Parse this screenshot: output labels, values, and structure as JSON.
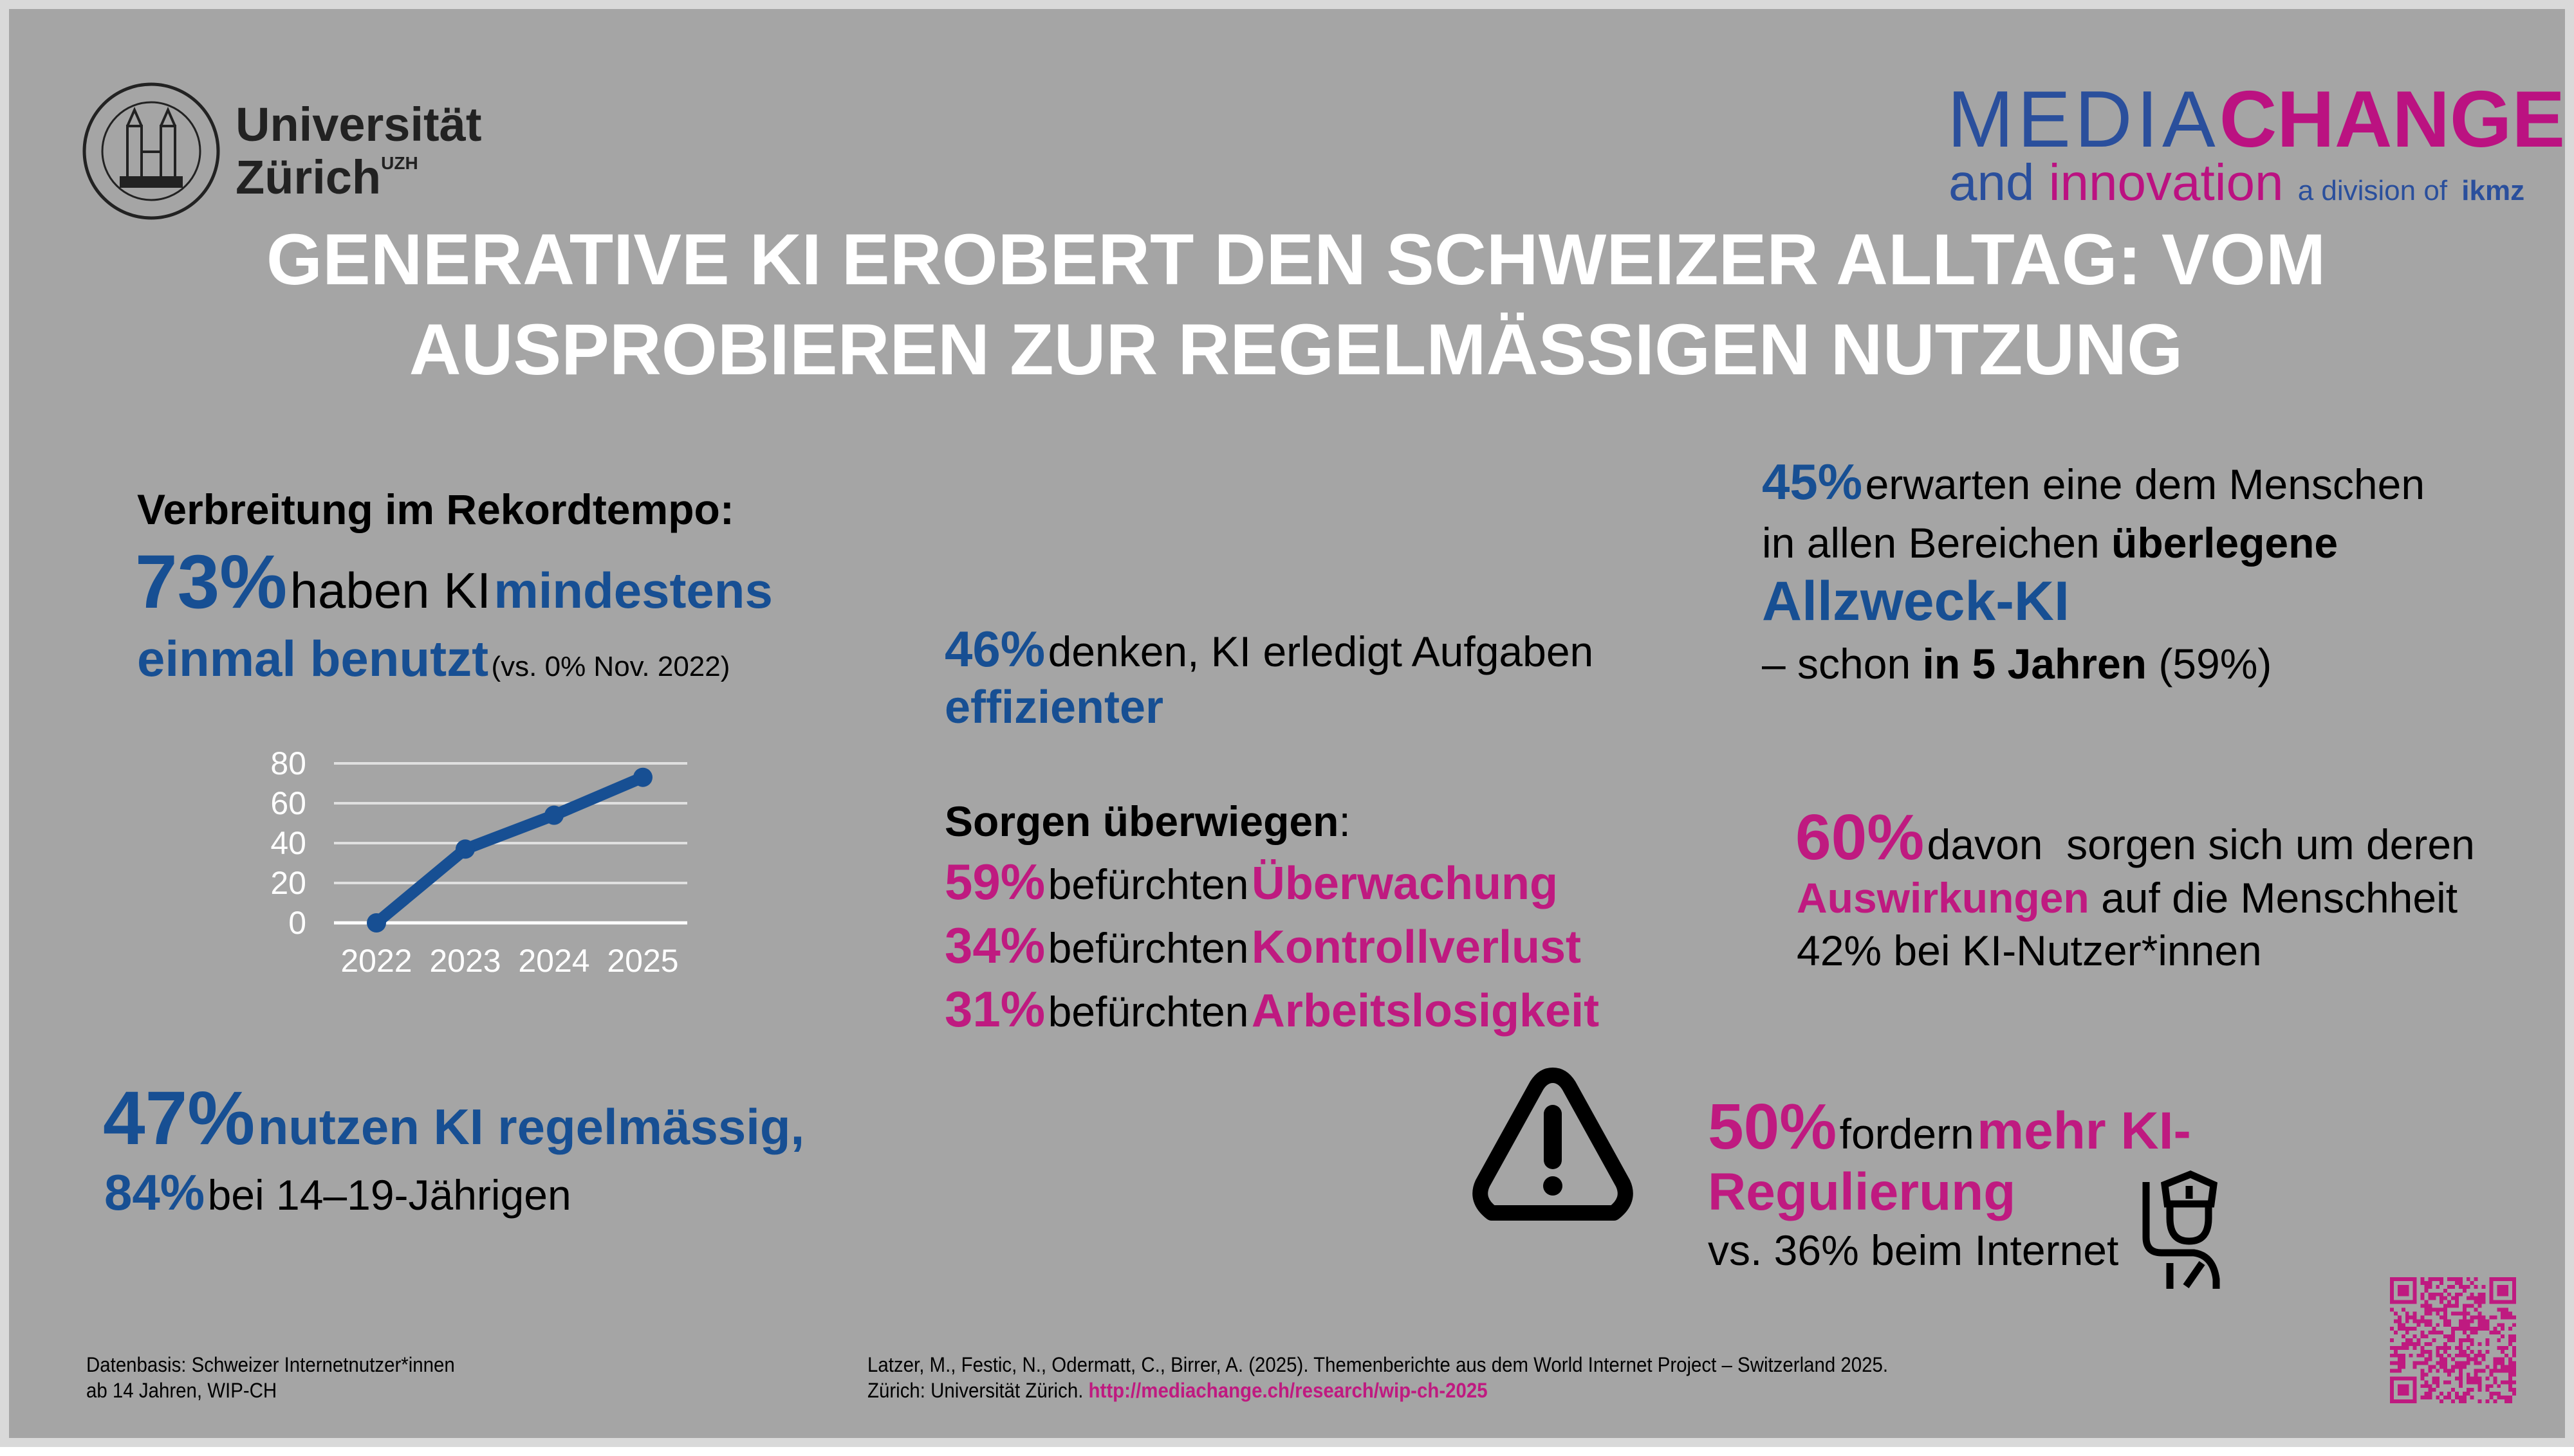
{
  "logos": {
    "uzh": {
      "line1": "Universität",
      "line2": "Zürich",
      "sup": "UZH"
    },
    "mediachange": {
      "media": "MEDIA",
      "change": "CHANGE",
      "and": "and",
      "innovation": "innovation",
      "division": "a division of",
      "ikmz": "ikmz"
    }
  },
  "title": {
    "line1": "GENERATIVE KI EROBERT DEN SCHWEIZER ALLTAG: VOM",
    "line2": "AUSPROBIEREN ZUR REGELMÄSSIGEN NUTZUNG"
  },
  "spread": {
    "heading": "Verbreitung im Rekordtempo:",
    "pct": "73%",
    "text1": "haben KI",
    "text2": "mindestens",
    "text3": "einmal benutzt",
    "note": "(vs. 0% Nov. 2022)"
  },
  "chart_data": {
    "type": "line",
    "categories": [
      "2022",
      "2023",
      "2024",
      "2025"
    ],
    "values": [
      0,
      37,
      54,
      73
    ],
    "yticks": [
      "0",
      "20",
      "40",
      "60",
      "80"
    ],
    "ylim": [
      0,
      80
    ],
    "grid": true,
    "color": "#174f93"
  },
  "regular": {
    "pct": "47%",
    "text": "nutzen KI regelmässig,",
    "pct2": "84%",
    "text2": "bei 14–19-Jährigen"
  },
  "efficiency": {
    "pct": "46%",
    "text": "denken, KI erledigt Aufgaben",
    "bold": "effizienter"
  },
  "worries": {
    "heading": "Sorgen überwiegen",
    "colon": ":",
    "items": [
      {
        "pct": "59%",
        "verb": "befürchten",
        "what": "Überwachung"
      },
      {
        "pct": "34%",
        "verb": "befürchten",
        "what": "Kontrollverlust"
      },
      {
        "pct": "31%",
        "verb": "befürchten",
        "what": "Arbeitslosigkeit"
      }
    ]
  },
  "agi": {
    "pct": "45%",
    "l1": "erwarten eine dem Menschen",
    "l2a": "in allen Bereichen",
    "l2b": "überlegene",
    "l3": "Allzweck-KI",
    "l4a": "– schon",
    "l4b": "in 5 Jahren",
    "l4c": "(59%)"
  },
  "impact": {
    "pct": "60%",
    "l1": "davon  sorgen sich um deren",
    "l2a": "Auswirkungen",
    "l2b": "auf die Menschheit",
    "l3": "42% bei KI-Nutzer*innen"
  },
  "regulation": {
    "pct": "50%",
    "l1a": "fordern",
    "l1b": "mehr KI-",
    "l2": "Regulierung",
    "l3": "vs. 36% beim Internet"
  },
  "footer": {
    "basis1": "Datenbasis: Schweizer Internetnutzer*innen",
    "basis2": "ab 14 Jahren, WIP-CH",
    "cite1": "Latzer, M., Festic, N., Odermatt, C., Birrer, A. (2025). Themenberichte aus dem World Internet Project – Switzerland 2025.",
    "cite2": "Zürich: Universität Zürich.",
    "link": "http://mediachange.ch/research/wip-ch-2025"
  },
  "colors": {
    "blue": "#174f93",
    "magenta": "#bf1a80",
    "background": "#a5a5a5"
  },
  "icons": [
    "uzh-seal",
    "warning-icon",
    "police-officer-icon",
    "qr-code"
  ]
}
